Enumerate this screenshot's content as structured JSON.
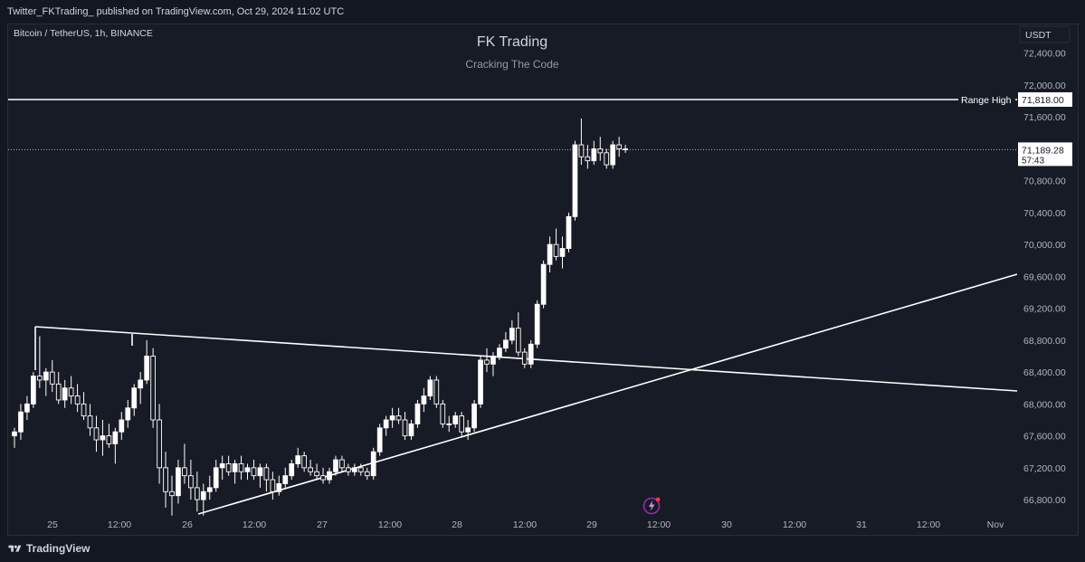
{
  "header": {
    "published_text": "Twitter_FKTrading_ published on TradingView.com, Oct 29, 2024 11:02 UTC"
  },
  "footer": {
    "brand": "TradingView"
  },
  "chart_data": {
    "type": "candlestick",
    "symbol_info": "Bitcoin / TetherUS, 1h, BINANCE",
    "title": "FK Trading",
    "subtitle": "Cracking The Code",
    "currency": "USDT",
    "ylim": [
      66540,
      72760
    ],
    "y_ticks": [
      "72,400.00",
      "72,000.00",
      "71,600.00",
      "70,800.00",
      "70,400.00",
      "70,000.00",
      "69,600.00",
      "69,200.00",
      "68,800.00",
      "68,400.00",
      "68,000.00",
      "67,600.00",
      "67,200.00",
      "66,800.00"
    ],
    "x_tick_labels": [
      "25",
      "12:00",
      "26",
      "12:00",
      "27",
      "12:00",
      "28",
      "12:00",
      "29",
      "12:00",
      "30",
      "12:00",
      "31",
      "12:00",
      "Nov"
    ],
    "range_high": {
      "label": "Range High",
      "price_label": "71,818.00",
      "value": 71818
    },
    "last_price": {
      "price_label": "71,189.28",
      "countdown": "57:43",
      "value": 71189.28
    },
    "colors": {
      "background": "#171b26",
      "candle_up": "#ffffff",
      "candle_down": "#ffffff",
      "lines": "#ffffff",
      "text": "#b2b5be",
      "grid_text": "#b2b5be"
    },
    "trendlines": [
      {
        "name": "descending",
        "from": [
          "Oct 24 21:00",
          68850
        ],
        "to": [
          "Oct 31 20:00",
          68000
        ]
      },
      {
        "name": "ascending",
        "from": [
          "Oct 26 02:00",
          66560
        ],
        "to": [
          "Oct 31 20:00",
          69550
        ]
      },
      {
        "name": "triangle-left-edge",
        "from": [
          "Oct 24 21:00",
          68850
        ],
        "to": [
          "Oct 24 21:00",
          68100
        ]
      }
    ],
    "candles": [
      [
        67600,
        67700,
        67450,
        67650
      ],
      [
        67650,
        68000,
        67550,
        67900
      ],
      [
        67900,
        68100,
        67800,
        68000
      ],
      [
        68000,
        68400,
        67950,
        68350
      ],
      [
        68350,
        68850,
        68200,
        68300
      ],
      [
        68300,
        68450,
        68100,
        68400
      ],
      [
        68400,
        68550,
        68150,
        68250
      ],
      [
        68250,
        68400,
        68000,
        68050
      ],
      [
        68050,
        68300,
        67950,
        68200
      ],
      [
        68200,
        68350,
        68000,
        68100
      ],
      [
        68100,
        68250,
        67900,
        68000
      ],
      [
        68000,
        68150,
        67800,
        67850
      ],
      [
        67850,
        68000,
        67600,
        67700
      ],
      [
        67700,
        67850,
        67400,
        67550
      ],
      [
        67550,
        67800,
        67350,
        67600
      ],
      [
        67600,
        67750,
        67450,
        67500
      ],
      [
        67500,
        67700,
        67250,
        67650
      ],
      [
        67650,
        67900,
        67550,
        67800
      ],
      [
        67800,
        68050,
        67700,
        67950
      ],
      [
        67950,
        68250,
        67850,
        68200
      ],
      [
        68200,
        68400,
        68000,
        68300
      ],
      [
        68300,
        68800,
        68250,
        68600
      ],
      [
        68600,
        68700,
        67700,
        67800
      ],
      [
        67800,
        68000,
        67000,
        67200
      ],
      [
        67200,
        67400,
        66700,
        66900
      ],
      [
        66900,
        67100,
        66600,
        66850
      ],
      [
        66850,
        67300,
        66750,
        67200
      ],
      [
        67200,
        67500,
        67000,
        67100
      ],
      [
        67100,
        67300,
        66800,
        66950
      ],
      [
        66950,
        67150,
        66650,
        66800
      ],
      [
        66800,
        67000,
        66600,
        66900
      ],
      [
        66900,
        67100,
        66800,
        66950
      ],
      [
        66950,
        67300,
        66900,
        67200
      ],
      [
        67200,
        67350,
        67050,
        67250
      ],
      [
        67250,
        67350,
        67100,
        67150
      ],
      [
        67150,
        67300,
        67000,
        67250
      ],
      [
        67250,
        67350,
        67050,
        67150
      ],
      [
        67150,
        67250,
        67050,
        67200
      ],
      [
        67200,
        67300,
        67050,
        67100
      ],
      [
        67100,
        67250,
        66950,
        67200
      ],
      [
        67200,
        67250,
        66900,
        67050
      ],
      [
        67050,
        67150,
        66800,
        66900
      ],
      [
        66900,
        67100,
        66850,
        67000
      ],
      [
        67000,
        67200,
        66950,
        67100
      ],
      [
        67100,
        67300,
        67050,
        67250
      ],
      [
        67250,
        67450,
        67200,
        67350
      ],
      [
        67350,
        67400,
        67150,
        67200
      ],
      [
        67200,
        67300,
        67100,
        67150
      ],
      [
        67150,
        67250,
        67050,
        67100
      ],
      [
        67100,
        67200,
        67000,
        67050
      ],
      [
        67050,
        67200,
        67000,
        67150
      ],
      [
        67150,
        67350,
        67100,
        67300
      ],
      [
        67300,
        67350,
        67150,
        67200
      ],
      [
        67200,
        67250,
        67100,
        67150
      ],
      [
        67150,
        67250,
        67100,
        67200
      ],
      [
        67200,
        67250,
        67100,
        67150
      ],
      [
        67150,
        67200,
        67050,
        67100
      ],
      [
        67100,
        67450,
        67050,
        67400
      ],
      [
        67400,
        67750,
        67350,
        67700
      ],
      [
        67700,
        67850,
        67600,
        67800
      ],
      [
        67800,
        67950,
        67700,
        67850
      ],
      [
        67850,
        67950,
        67750,
        67800
      ],
      [
        67800,
        67900,
        67550,
        67600
      ],
      [
        67600,
        67800,
        67550,
        67750
      ],
      [
        67750,
        68050,
        67700,
        68000
      ],
      [
        68000,
        68200,
        67900,
        68100
      ],
      [
        68100,
        68350,
        68050,
        68300
      ],
      [
        68300,
        68350,
        67950,
        68000
      ],
      [
        68000,
        68050,
        67700,
        67750
      ],
      [
        67750,
        67850,
        67650,
        67750
      ],
      [
        67750,
        67900,
        67700,
        67850
      ],
      [
        67850,
        67900,
        67600,
        67650
      ],
      [
        67650,
        67800,
        67550,
        67700
      ],
      [
        67700,
        68050,
        67650,
        68000
      ],
      [
        68000,
        68600,
        67950,
        68550
      ],
      [
        68550,
        68700,
        68400,
        68500
      ],
      [
        68500,
        68650,
        68350,
        68600
      ],
      [
        68600,
        68750,
        68550,
        68700
      ],
      [
        68700,
        68900,
        68650,
        68800
      ],
      [
        68800,
        69050,
        68750,
        68950
      ],
      [
        68950,
        69150,
        68600,
        68650
      ],
      [
        68650,
        68700,
        68450,
        68500
      ],
      [
        68500,
        68800,
        68450,
        68750
      ],
      [
        68750,
        69300,
        68700,
        69250
      ],
      [
        69250,
        69800,
        69200,
        69750
      ],
      [
        69750,
        70100,
        69650,
        70000
      ],
      [
        70000,
        70200,
        69800,
        69850
      ],
      [
        69850,
        70100,
        69700,
        69950
      ],
      [
        69950,
        70400,
        69900,
        70350
      ],
      [
        70350,
        71300,
        70300,
        71250
      ],
      [
        71250,
        71580,
        71000,
        71100
      ],
      [
        71100,
        71250,
        70950,
        71050
      ],
      [
        71050,
        71300,
        71000,
        71200
      ],
      [
        71200,
        71350,
        71050,
        71150
      ],
      [
        71150,
        71200,
        70950,
        71000
      ],
      [
        71000,
        71300,
        70950,
        71250
      ],
      [
        71250,
        71350,
        71100,
        71200
      ],
      [
        71200,
        71250,
        71150,
        71189
      ]
    ]
  }
}
